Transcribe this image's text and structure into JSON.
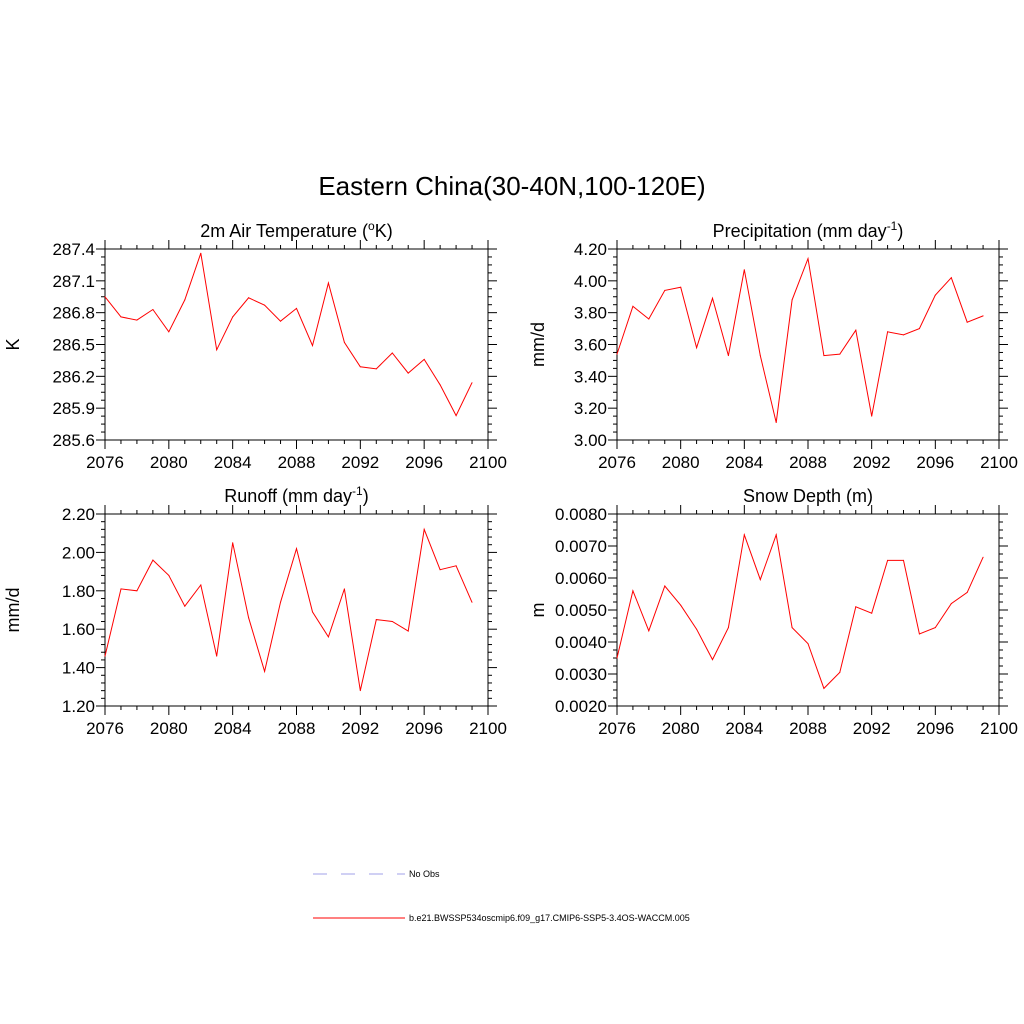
{
  "figure": {
    "title": "Eastern China(30-40N,100-120E)"
  },
  "legend": {
    "entries": [
      {
        "label": "No Obs",
        "color": "#a0a0e8",
        "dashed": true
      },
      {
        "label": "b.e21.BWSSP534oscmip6.f09_g17.CMIP6-SSP5-3.4OS-WACCM.005",
        "color": "#ff0000",
        "dashed": false
      }
    ]
  },
  "chart_data": [
    {
      "type": "line",
      "title": "2m Air Temperature (",
      "title_sup": "o",
      "title_suffix": "K)",
      "ylabel": "K",
      "xlabel": "",
      "xlim": [
        2076,
        2100
      ],
      "ylim": [
        285.6,
        287.4
      ],
      "xticks": [
        2076,
        2080,
        2084,
        2088,
        2092,
        2096,
        2100
      ],
      "yticks": [
        285.6,
        285.9,
        286.2,
        286.5,
        286.8,
        287.1,
        287.4
      ],
      "ytick_labels": [
        "285.6",
        "285.9",
        "286.2",
        "286.5",
        "286.8",
        "287.1",
        "287.4"
      ],
      "x": [
        2076,
        2077,
        2078,
        2079,
        2080,
        2081,
        2082,
        2083,
        2084,
        2085,
        2086,
        2087,
        2088,
        2089,
        2090,
        2091,
        2092,
        2093,
        2094,
        2095,
        2096,
        2097,
        2098,
        2099
      ],
      "series": [
        {
          "name": "b.e21.BWSSP534oscmip6.f09_g17.CMIP6-SSP5-3.4OS-WACCM.005",
          "color": "#ff0000",
          "values": [
            286.95,
            286.76,
            286.73,
            286.83,
            286.62,
            286.92,
            287.36,
            286.45,
            286.76,
            286.94,
            286.87,
            286.72,
            286.84,
            286.49,
            287.08,
            286.52,
            286.29,
            286.27,
            286.42,
            286.23,
            286.36,
            286.12,
            285.83,
            286.14
          ]
        }
      ]
    },
    {
      "type": "line",
      "title": "Precipitation (mm day",
      "title_sup": "-1",
      "title_suffix": ")",
      "ylabel": "mm/d",
      "xlabel": "",
      "xlim": [
        2076,
        2100
      ],
      "ylim": [
        3.0,
        4.2
      ],
      "xticks": [
        2076,
        2080,
        2084,
        2088,
        2092,
        2096,
        2100
      ],
      "yticks": [
        3.0,
        3.2,
        3.4,
        3.6,
        3.8,
        4.0,
        4.2
      ],
      "ytick_labels": [
        "3.00",
        "3.20",
        "3.40",
        "3.60",
        "3.80",
        "4.00",
        "4.20"
      ],
      "x": [
        2076,
        2077,
        2078,
        2079,
        2080,
        2081,
        2082,
        2083,
        2084,
        2085,
        2086,
        2087,
        2088,
        2089,
        2090,
        2091,
        2092,
        2093,
        2094,
        2095,
        2096,
        2097,
        2098,
        2099
      ],
      "series": [
        {
          "name": "b.e21.BWSSP534oscmip6.f09_g17.CMIP6-SSP5-3.4OS-WACCM.005",
          "color": "#ff0000",
          "values": [
            3.54,
            3.84,
            3.76,
            3.94,
            3.96,
            3.58,
            3.89,
            3.53,
            4.07,
            3.53,
            3.11,
            3.88,
            4.14,
            3.53,
            3.54,
            3.69,
            3.15,
            3.68,
            3.66,
            3.7,
            3.91,
            4.02,
            3.74,
            3.78
          ]
        }
      ]
    },
    {
      "type": "line",
      "title": "Runoff (mm day",
      "title_sup": "-1",
      "title_suffix": ")",
      "ylabel": "mm/d",
      "xlabel": "",
      "xlim": [
        2076,
        2100
      ],
      "ylim": [
        1.2,
        2.2
      ],
      "xticks": [
        2076,
        2080,
        2084,
        2088,
        2092,
        2096,
        2100
      ],
      "yticks": [
        1.2,
        1.4,
        1.6,
        1.8,
        2.0,
        2.2
      ],
      "ytick_labels": [
        "1.20",
        "1.40",
        "1.60",
        "1.80",
        "2.00",
        "2.20"
      ],
      "x": [
        2076,
        2077,
        2078,
        2079,
        2080,
        2081,
        2082,
        2083,
        2084,
        2085,
        2086,
        2087,
        2088,
        2089,
        2090,
        2091,
        2092,
        2093,
        2094,
        2095,
        2096,
        2097,
        2098,
        2099
      ],
      "series": [
        {
          "name": "b.e21.BWSSP534oscmip6.f09_g17.CMIP6-SSP5-3.4OS-WACCM.005",
          "color": "#ff0000",
          "values": [
            1.46,
            1.81,
            1.8,
            1.96,
            1.88,
            1.72,
            1.83,
            1.46,
            2.05,
            1.66,
            1.38,
            1.74,
            2.02,
            1.69,
            1.56,
            1.81,
            1.28,
            1.65,
            1.64,
            1.59,
            2.12,
            1.91,
            1.93,
            1.74
          ]
        }
      ]
    },
    {
      "type": "line",
      "title": "Snow Depth (m)",
      "title_sup": "",
      "title_suffix": "",
      "ylabel": "m",
      "xlabel": "",
      "xlim": [
        2076,
        2100
      ],
      "ylim": [
        0.002,
        0.008
      ],
      "xticks": [
        2076,
        2080,
        2084,
        2088,
        2092,
        2096,
        2100
      ],
      "yticks": [
        0.002,
        0.003,
        0.004,
        0.005,
        0.006,
        0.007,
        0.008
      ],
      "ytick_labels": [
        "0.0020",
        "0.0030",
        "0.0040",
        "0.0050",
        "0.0060",
        "0.0070",
        "0.0080"
      ],
      "x": [
        2076,
        2077,
        2078,
        2079,
        2080,
        2081,
        2082,
        2083,
        2084,
        2085,
        2086,
        2087,
        2088,
        2089,
        2090,
        2091,
        2092,
        2093,
        2094,
        2095,
        2096,
        2097,
        2098,
        2099
      ],
      "series": [
        {
          "name": "b.e21.BWSSP534oscmip6.f09_g17.CMIP6-SSP5-3.4OS-WACCM.005",
          "color": "#ff0000",
          "values": [
            0.0035,
            0.0056,
            0.00435,
            0.00575,
            0.00515,
            0.0044,
            0.00345,
            0.00445,
            0.00735,
            0.00595,
            0.00735,
            0.00445,
            0.00395,
            0.00255,
            0.00305,
            0.0051,
            0.0049,
            0.00655,
            0.00655,
            0.00425,
            0.00445,
            0.0052,
            0.00555,
            0.00665
          ]
        }
      ]
    }
  ]
}
